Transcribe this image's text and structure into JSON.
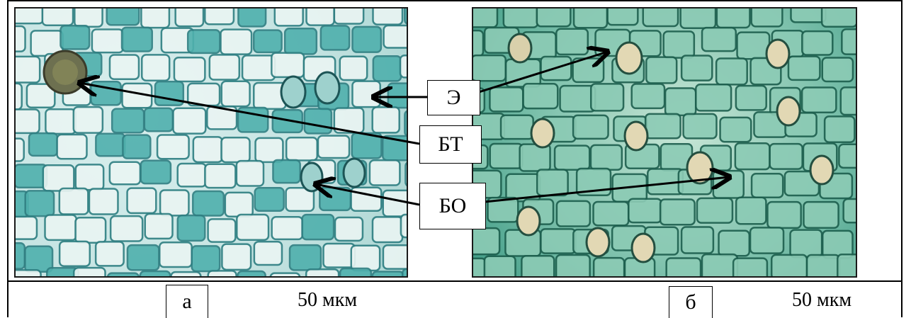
{
  "labels": {
    "epidermis": "Э",
    "glandular_trichome": "БТ",
    "stomata": "БО"
  },
  "panels": [
    {
      "letter": "а",
      "scale": "50 мкм"
    },
    {
      "letter": "б",
      "scale": "50 мкм"
    }
  ],
  "colors": {
    "panel_a_cell_wall": "#2f7f82",
    "panel_a_cell_fill": "#eaf5f3",
    "panel_a_stained_fill": "#4fb0ad",
    "panel_b_cell_wall": "#1d5f4e",
    "panel_b_cell_fill": "#8ccbb5",
    "arrow": "#000000"
  }
}
